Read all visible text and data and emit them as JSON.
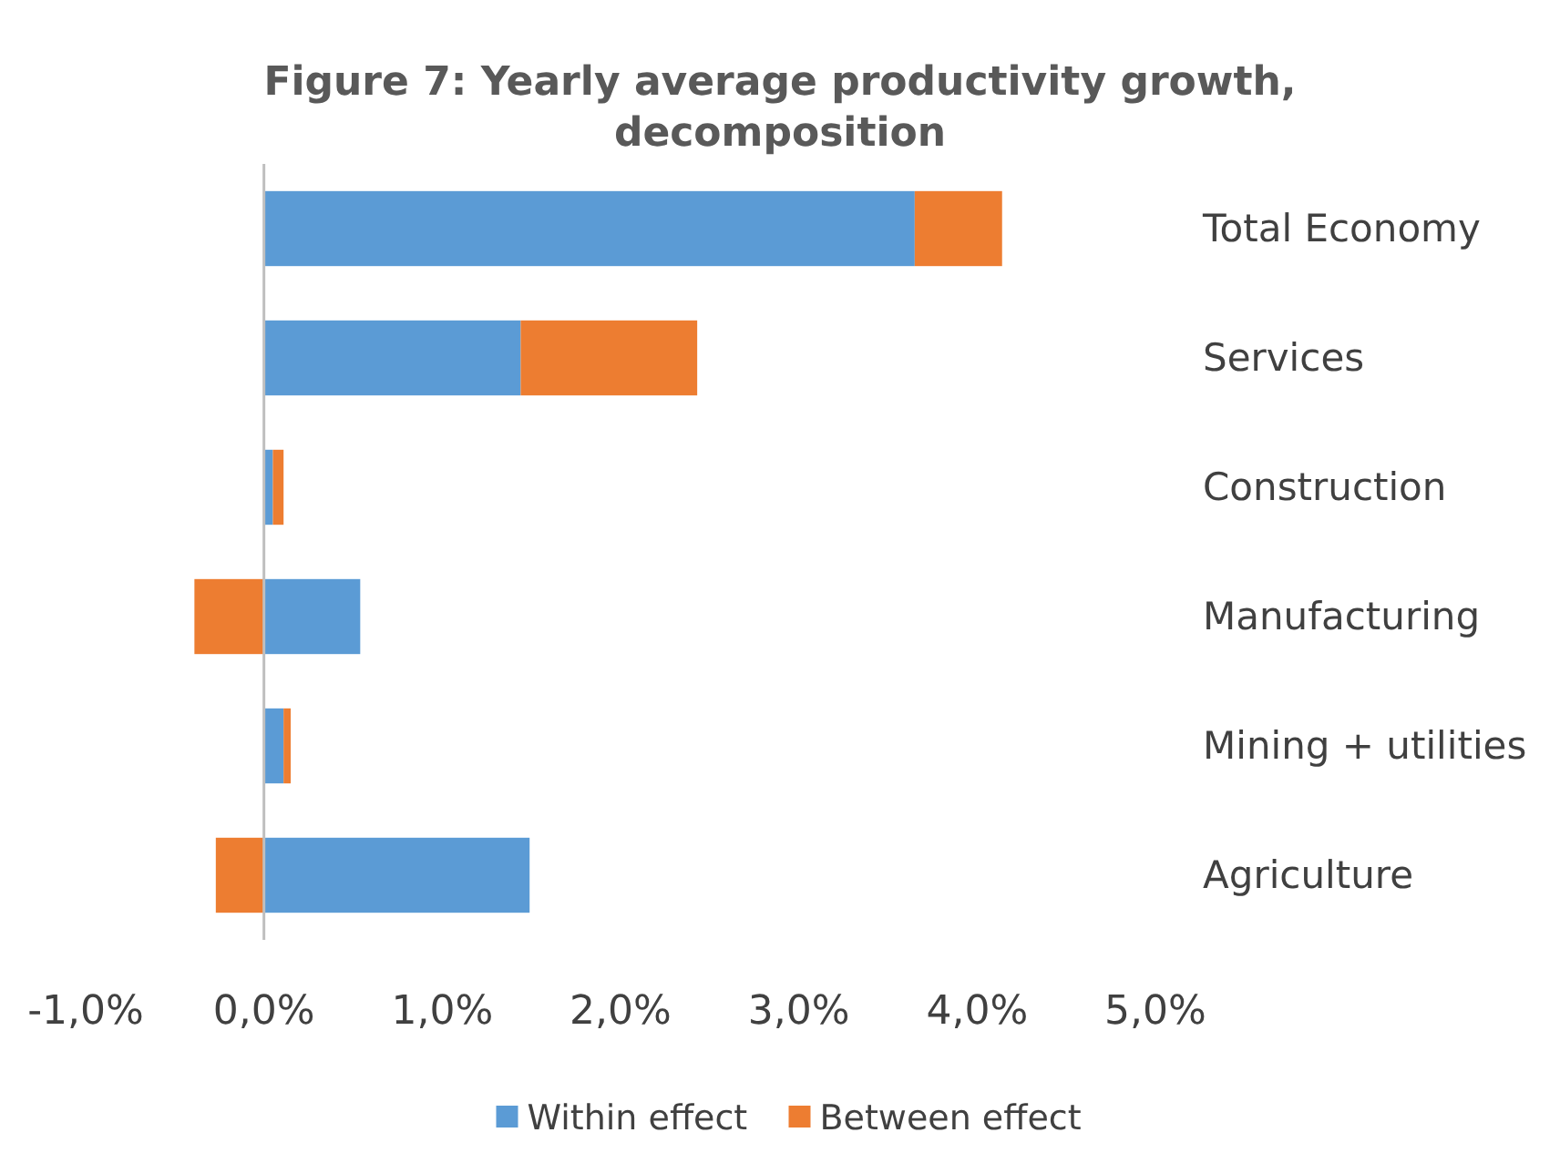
{
  "chart_data": {
    "type": "bar",
    "orientation": "horizontal",
    "stacked": true,
    "title": "Figure 7: Yearly average productivity growth, decomposition",
    "categories": [
      "Total Economy",
      "Services",
      "Construction",
      "Manufacturing",
      "Mining + utilities",
      "Agriculture"
    ],
    "series": [
      {
        "name": "Within effect",
        "color": "#5b9bd5",
        "values": [
          3.65,
          1.44,
          0.05,
          0.54,
          0.11,
          1.49
        ]
      },
      {
        "name": "Between effect",
        "color": "#ed7d31",
        "values": [
          0.49,
          0.99,
          0.06,
          -0.39,
          0.04,
          -0.27
        ]
      }
    ],
    "xlim": [
      -1,
      5
    ],
    "xticks": [
      {
        "value": -1,
        "label": "-1,0%"
      },
      {
        "value": 0,
        "label": "0,0%"
      },
      {
        "value": 1,
        "label": "1,0%"
      },
      {
        "value": 2,
        "label": "2,0%"
      },
      {
        "value": 3,
        "label": "3,0%"
      },
      {
        "value": 4,
        "label": "4,0%"
      },
      {
        "value": 5,
        "label": "5,0%"
      }
    ],
    "legend": "bottom"
  }
}
